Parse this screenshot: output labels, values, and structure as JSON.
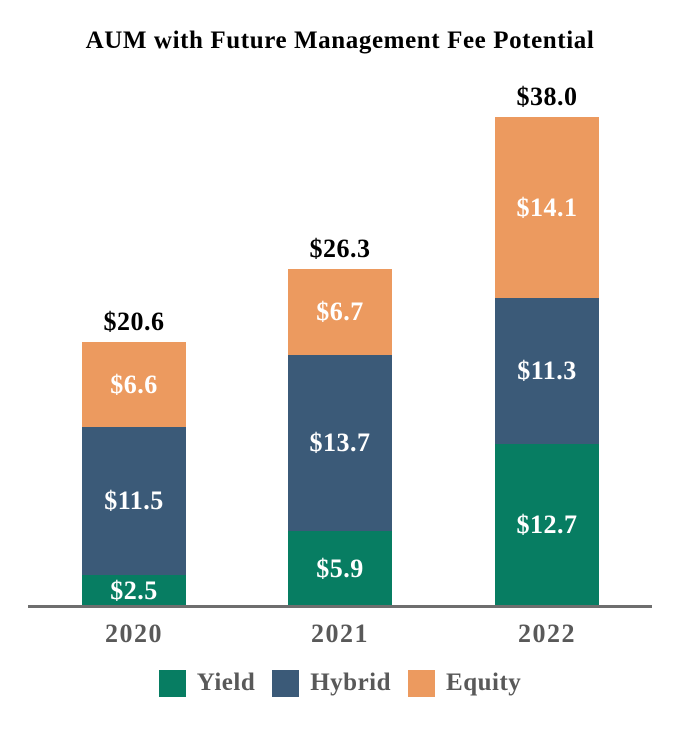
{
  "title": "AUM with Future Management Fee Potential",
  "colors": {
    "yield": "#077D62",
    "hybrid": "#3B5A78",
    "equity": "#EC9A5F",
    "axis_line": "#6E6E6E",
    "tick_text": "#595959",
    "segment_text": "#FFFFFF",
    "title_text": "#000000"
  },
  "chart_data": {
    "type": "bar",
    "stacked": true,
    "title": "AUM with Future Management Fee Potential",
    "categories": [
      "2020",
      "2021",
      "2022"
    ],
    "series": [
      {
        "name": "Yield",
        "color": "#077D62",
        "values": [
          2.5,
          5.9,
          12.7
        ],
        "labels": [
          "$2.5",
          "$5.9",
          "$12.7"
        ]
      },
      {
        "name": "Hybrid",
        "color": "#3B5A78",
        "values": [
          11.5,
          13.7,
          11.3
        ],
        "labels": [
          "$11.5",
          "$13.7",
          "$11.3"
        ]
      },
      {
        "name": "Equity",
        "color": "#EC9A5F",
        "values": [
          6.6,
          6.7,
          14.1
        ],
        "labels": [
          "$6.6",
          "$6.7",
          "$14.1"
        ]
      }
    ],
    "totals": [
      20.6,
      26.3,
      38.0
    ],
    "total_labels": [
      "$20.6",
      "$26.3",
      "$38.0"
    ],
    "value_prefix": "$",
    "unit": "billions",
    "legend_position": "bottom",
    "grid": false,
    "ylim": [
      0,
      38.0
    ]
  }
}
